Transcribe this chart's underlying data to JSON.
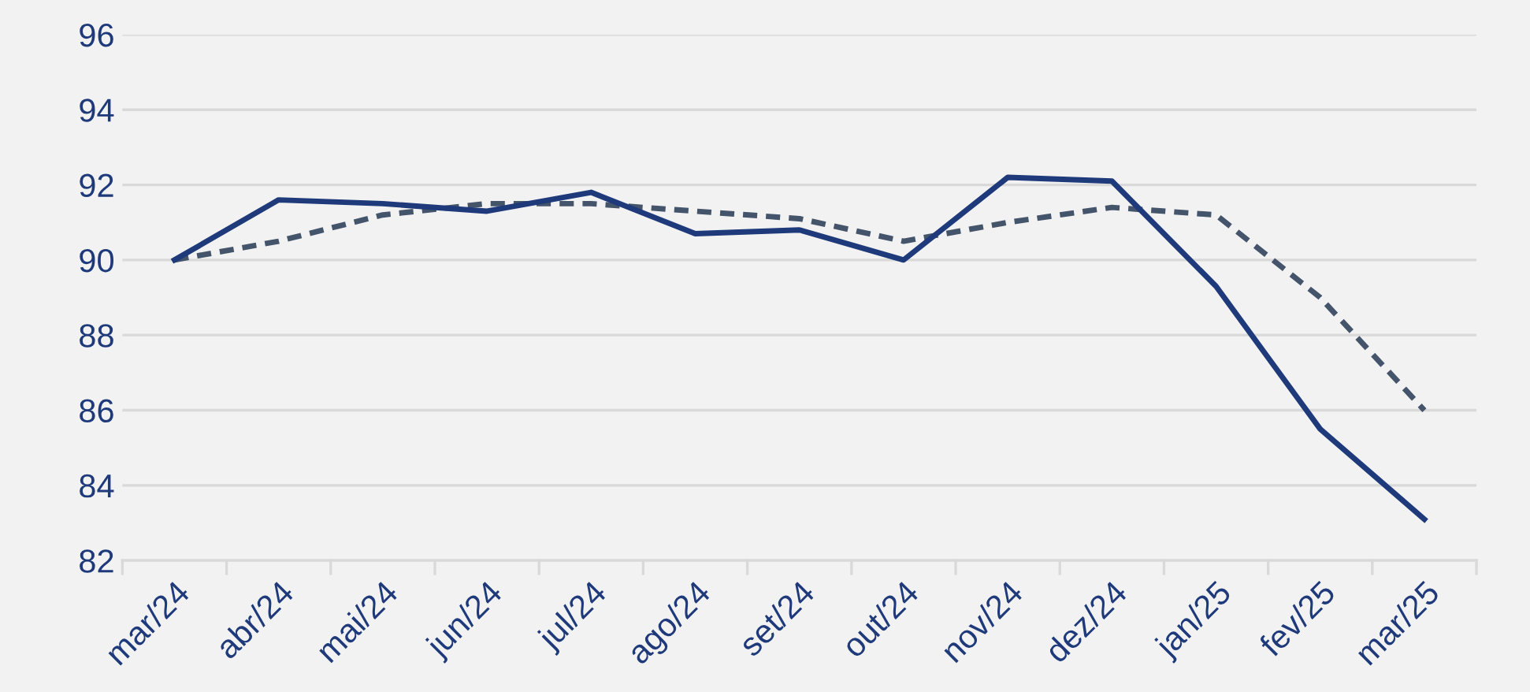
{
  "chart_data": {
    "type": "line",
    "categories": [
      "mar/24",
      "abr/24",
      "mai/24",
      "jun/24",
      "jul/24",
      "ago/24",
      "set/24",
      "out/24",
      "nov/24",
      "dez/24",
      "jan/25",
      "fev/25",
      "mar/25"
    ],
    "series": [
      {
        "color": "#1f3a7a",
        "line_style": "solid",
        "values": [
          90.0,
          91.6,
          91.5,
          91.3,
          91.8,
          90.7,
          90.8,
          90.0,
          92.2,
          92.1,
          89.3,
          85.5,
          83.1
        ]
      },
      {
        "color": "#44546a",
        "line_style": "dashed",
        "values": [
          90.0,
          90.5,
          91.2,
          91.5,
          91.5,
          91.3,
          91.1,
          90.5,
          91.0,
          91.4,
          91.2,
          89.0,
          86.0
        ]
      }
    ],
    "ylim": [
      82,
      96
    ],
    "yticks": [
      82,
      84,
      86,
      88,
      90,
      92,
      94,
      96
    ],
    "grid": "y",
    "marker": "none"
  }
}
